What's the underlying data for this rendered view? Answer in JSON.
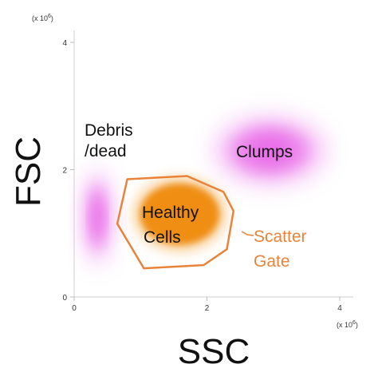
{
  "chart_data": {
    "type": "scatter",
    "title": "",
    "xlabel": "SSC",
    "ylabel": "FSC",
    "x_multiplier": "(x 10",
    "y_multiplier": "(x 10",
    "multiplier_exponent": "6",
    "xlim": [
      0,
      4
    ],
    "ylim": [
      0,
      4
    ],
    "x_ticks": [
      {
        "value": 0,
        "label": "0"
      },
      {
        "value": 2,
        "label": "2"
      },
      {
        "value": 4,
        "label": "4"
      }
    ],
    "y_ticks": [
      {
        "value": 0,
        "label": "0"
      },
      {
        "value": 2,
        "label": "2"
      },
      {
        "value": 4,
        "label": "4"
      }
    ],
    "grid": false,
    "colors": {
      "density": "#e65ce6",
      "healthy_fill": "#ef8c10",
      "gate_stroke": "#e8833a",
      "gate_label": "#e8833a"
    },
    "regions": [
      {
        "name": "Debris /dead",
        "label_lines": [
          "Debris",
          "/dead"
        ],
        "center": [
          0.35,
          1.25
        ],
        "spread": [
          0.22,
          0.75
        ]
      },
      {
        "name": "Clumps",
        "label_lines": [
          "Clumps"
        ],
        "center": [
          2.95,
          2.3
        ],
        "spread": [
          0.85,
          0.55
        ]
      },
      {
        "name": "Healthy Cells",
        "label_lines": [
          "Healthy",
          "Cells"
        ],
        "center": [
          1.35,
          1.25
        ],
        "spread": [
          0.55,
          0.55
        ]
      }
    ],
    "scatter_gate": {
      "label_lines": [
        "Scatter",
        "Gate"
      ],
      "polygon": [
        [
          0.8,
          1.85
        ],
        [
          1.7,
          1.9
        ],
        [
          2.25,
          1.65
        ],
        [
          2.4,
          1.35
        ],
        [
          2.3,
          0.75
        ],
        [
          1.95,
          0.5
        ],
        [
          1.05,
          0.45
        ],
        [
          0.65,
          1.15
        ]
      ]
    }
  }
}
